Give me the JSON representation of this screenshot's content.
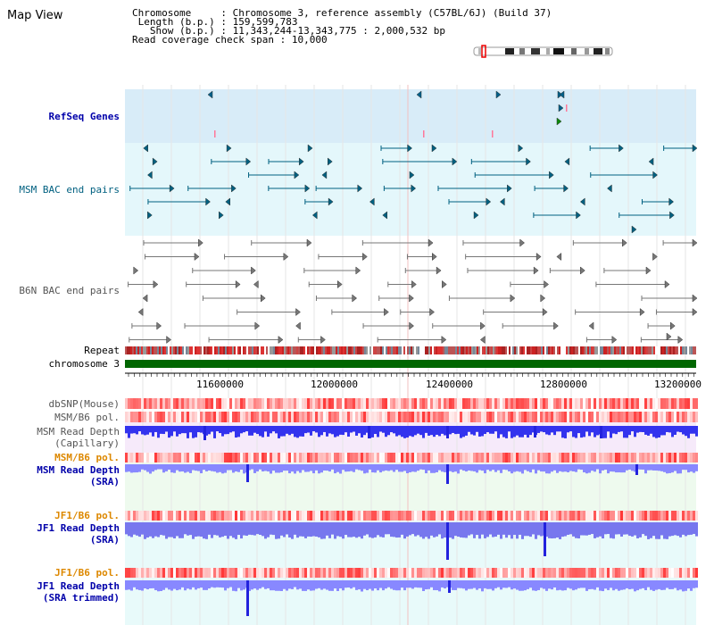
{
  "view_title": "Map View",
  "info": {
    "chromosome_label": "Chromosome",
    "chromosome_value": "Chromosome 3, reference assembly (C57BL/6J) (Build 37)",
    "length_label": "Length (b.p.)",
    "length_value": "159,599,783",
    "show_label": "Show (b.p.)",
    "show_value": "11,343,244-13,343,775 : 2,000,532 bp",
    "coverage_label": "Read coverage check span",
    "coverage_value": "10,000"
  },
  "track_labels": {
    "refseq": "RefSeq Genes",
    "msm_bac": "MSM BAC end pairs",
    "b6n_bac": "B6N BAC end pairs",
    "repeat": "Repeat",
    "chromosome": "chromosome 3",
    "dbsnp": "dbSNP(Mouse)",
    "msm_b6_pol": "MSM/B6 pol.",
    "msm_rd_cap_1": "MSM Read Depth",
    "msm_rd_cap_2": "(Capillary)",
    "msm_b6_pol_2": "MSM/B6 pol.",
    "msm_rd_sra_1": "MSM Read Depth",
    "msm_rd_sra_2": "(SRA)",
    "jf1_b6_pol": "JF1/B6 pol.",
    "jf1_rd_sra_1": "JF1 Read Depth",
    "jf1_rd_sra_2": "(SRA)",
    "jf1_b6_pol_2": "JF1/B6 pol.",
    "jf1_rd_trim_1": "JF1 Read Depth",
    "jf1_rd_trim_2": "(SRA trimmed)"
  },
  "axis_ticks": [
    "11600000",
    "12000000",
    "12400000",
    "12800000",
    "13200000"
  ],
  "colors": {
    "refseq_label": "#0000aa",
    "msm_label": "#006080",
    "b6n_label": "#555555",
    "orange_label": "#dd8800",
    "blue_label": "#0000aa",
    "depth_bar": "#6666ff",
    "chromosome_bar": "#006600"
  }
}
